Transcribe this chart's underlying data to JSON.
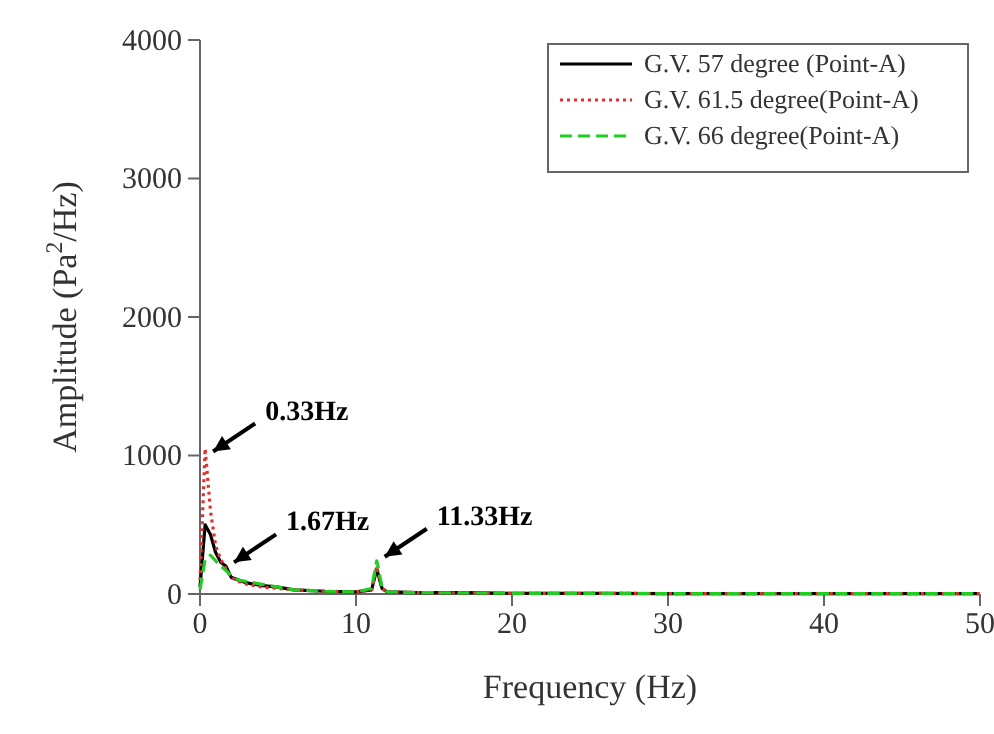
{
  "chart_data": {
    "type": "line",
    "xlabel": "Frequency (Hz)",
    "ylabel": "Amplitude (Pa$^{2}$/Hz)",
    "x": [
      0,
      0.33,
      0.67,
      1,
      1.33,
      1.67,
      2,
      2.5,
      3,
      4,
      5,
      6,
      8,
      10,
      11,
      11.33,
      11.67,
      12,
      14,
      17,
      20,
      25,
      30,
      35,
      40,
      45,
      50
    ],
    "series": [
      {
        "name": "G.V. 57 degree (Point-A)",
        "color": "#000000",
        "line_style": "solid",
        "values": [
          50,
          500,
          430,
          300,
          230,
          200,
          120,
          100,
          80,
          60,
          50,
          30,
          20,
          15,
          30,
          180,
          40,
          15,
          10,
          10,
          5,
          5,
          3,
          3,
          2,
          2,
          2
        ]
      },
      {
        "name": "G.V. 61.5 degree(Point-A)",
        "color": "#e03030",
        "line_style": "dotted",
        "values": [
          100,
          1050,
          600,
          350,
          250,
          180,
          120,
          90,
          70,
          50,
          40,
          30,
          20,
          15,
          30,
          200,
          40,
          15,
          10,
          8,
          5,
          5,
          3,
          3,
          2,
          2,
          2
        ]
      },
      {
        "name": "G.V. 66 degree(Point-A)",
        "color": "#22cc22",
        "line_style": "dashed",
        "values": [
          30,
          250,
          280,
          240,
          200,
          170,
          130,
          100,
          90,
          70,
          50,
          30,
          20,
          15,
          40,
          240,
          50,
          15,
          10,
          8,
          5,
          5,
          3,
          3,
          2,
          2,
          2
        ]
      }
    ],
    "xlim": [
      0,
      50
    ],
    "xticks": [
      0,
      10,
      20,
      30,
      40,
      50
    ],
    "ylim": [
      0,
      4000
    ],
    "yticks": [
      0,
      1000,
      2000,
      3000,
      4000
    ],
    "legend": "top right",
    "grid": false,
    "annotations": [
      {
        "text": "0.33Hz",
        "x": 0.33,
        "y": 1000
      },
      {
        "text": "1.67Hz",
        "x": 1.67,
        "y": 200
      },
      {
        "text": "11.33Hz",
        "x": 11.33,
        "y": 240
      }
    ]
  }
}
